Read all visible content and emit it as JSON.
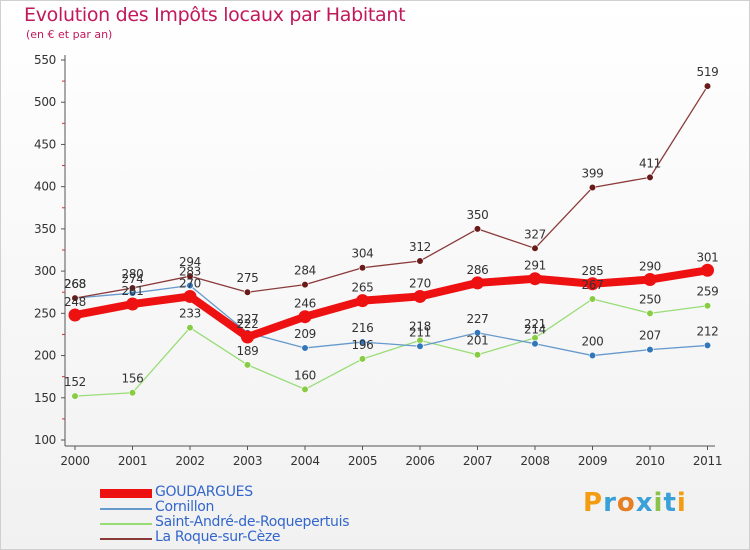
{
  "chart_data": {
    "type": "line",
    "title": "Evolution des Impôts locaux par Habitant",
    "subtitle": "(en € et par an)",
    "xlabel": "",
    "ylabel": "",
    "categories": [
      "2000",
      "2001",
      "2002",
      "2003",
      "2004",
      "2005",
      "2006",
      "2007",
      "2008",
      "2009",
      "2010",
      "2011"
    ],
    "ylim": [
      100,
      550
    ],
    "yticks": [
      100,
      150,
      200,
      250,
      300,
      350,
      400,
      450,
      500,
      550
    ],
    "grid": false,
    "legend_position": "bottom-left",
    "series": [
      {
        "name": "Saint-André-de-Roquepertuis",
        "color": "#99dd77",
        "marker": "#88cc44",
        "values": [
          152,
          156,
          233,
          189,
          160,
          196,
          218,
          201,
          221,
          267,
          250,
          259
        ]
      },
      {
        "name": "Cornillon",
        "color": "#6699cc",
        "marker": "#3377bb",
        "values": [
          268,
          274,
          283,
          227,
          209,
          216,
          211,
          227,
          214,
          200,
          207,
          212
        ]
      },
      {
        "name": "La Roque-sur-Cèze",
        "color": "#8b3a3a",
        "marker": "#6b1a1a",
        "values": [
          268,
          280,
          294,
          275,
          284,
          304,
          312,
          350,
          327,
          399,
          411,
          519
        ]
      },
      {
        "name": "GOUDARGUES",
        "color": "#ee1111",
        "marker": "#ee1111",
        "values": [
          248,
          261,
          270,
          222,
          246,
          265,
          270,
          286,
          291,
          285,
          290,
          301
        ]
      }
    ],
    "value_labels": {
      "GOUDARGUES": [
        "248",
        "261",
        "270",
        "222",
        "246",
        "265",
        "270",
        "286",
        "291",
        "285",
        "290",
        "301"
      ],
      "Cornillon": [
        "268",
        "274",
        "283",
        "227",
        "209",
        "216",
        "211",
        "227",
        "214",
        "200",
        "207",
        "212"
      ],
      "Saint-André-de-Roquepertuis": [
        "152",
        "156",
        "233",
        "189",
        "160",
        "196",
        "218",
        "201",
        "221",
        "267",
        "250",
        "259"
      ],
      "La Roque-sur-Cèze": [
        "268",
        "280",
        "294",
        "275",
        "284",
        "304",
        "312",
        "350",
        "327",
        "399",
        "411",
        "519"
      ]
    }
  },
  "legend": {
    "items": [
      {
        "label": "GOUDARGUES",
        "color": "#ee1111"
      },
      {
        "label": "Cornillon",
        "color": "#6699cc"
      },
      {
        "label": "Saint-André-de-Roquepertuis",
        "color": "#99dd77"
      },
      {
        "label": "La Roque-sur-Cèze",
        "color": "#8b3a3a"
      }
    ]
  },
  "brand": {
    "letters": [
      "P",
      "r",
      "o",
      "x",
      "i",
      "t",
      "i"
    ],
    "colors": [
      "#f39c12",
      "#3aa0d8",
      "#e67e22",
      "#3aa0d8",
      "#8bc34a",
      "#3aa0d8",
      "#f39c12"
    ]
  }
}
